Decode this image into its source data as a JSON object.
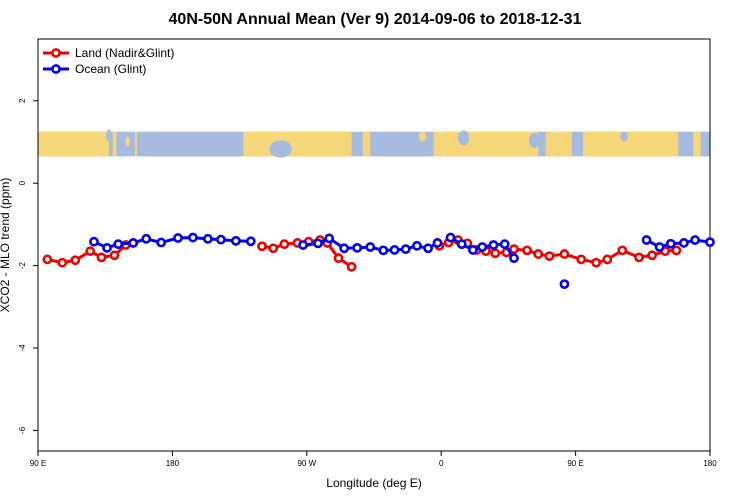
{
  "chart_data": {
    "type": "line",
    "title": "40N-50N Annual Mean (Ver 9)   2014-09-06 to 2018-12-31",
    "xlabel": "Longitude (deg E)",
    "ylabel": "XCO2 - MLO trend (ppm)",
    "xlim": [
      90,
      450
    ],
    "ylim": [
      -6.5,
      3.5
    ],
    "x_ticks": [
      {
        "value": 90,
        "label": "90 E"
      },
      {
        "value": 162,
        "label": "180"
      },
      {
        "value": 234,
        "label": "90 W"
      },
      {
        "value": 306,
        "label": "0"
      },
      {
        "value": 378,
        "label": "90 E"
      },
      {
        "value": 450,
        "label": "180"
      }
    ],
    "y_ticks": [
      {
        "value": -6,
        "label": "-6"
      },
      {
        "value": -4,
        "label": "-4"
      },
      {
        "value": -2,
        "label": "-2"
      },
      {
        "value": 0,
        "label": "0"
      },
      {
        "value": 2,
        "label": "2"
      }
    ],
    "map_strip": {
      "ymin": 0.65,
      "ymax": 1.25,
      "land_color": "#f5d77a",
      "ocean_color": "#a6bbdf"
    },
    "legend": {
      "placement": "top-left"
    },
    "series": [
      {
        "name": "Land (Nadir&Glint)",
        "color": "#ee0000",
        "segments": [
          {
            "x": [
              95,
              103,
              110,
              118,
              124,
              131,
              137
            ],
            "y": [
              -1.85,
              -1.93,
              -1.87,
              -1.65,
              -1.8,
              -1.75,
              -1.5
            ]
          },
          {
            "x": [
              210,
              216,
              222,
              229,
              235,
              241,
              245,
              251,
              258
            ],
            "y": [
              -1.53,
              -1.58,
              -1.48,
              -1.45,
              -1.42,
              -1.38,
              -1.45,
              -1.82,
              -2.03
            ]
          },
          {
            "x": [
              305,
              310,
              315,
              320,
              325,
              330,
              335,
              341,
              345,
              352,
              358,
              364,
              372,
              381,
              389,
              395,
              403,
              412,
              419,
              426,
              432
            ],
            "y": [
              -1.52,
              -1.44,
              -1.38,
              -1.46,
              -1.62,
              -1.65,
              -1.7,
              -1.68,
              -1.6,
              -1.63,
              -1.72,
              -1.77,
              -1.72,
              -1.85,
              -1.93,
              -1.85,
              -1.63,
              -1.8,
              -1.75,
              -1.65,
              -1.63
            ]
          }
        ]
      },
      {
        "name": "Ocean (Glint)",
        "color": "#0000ee",
        "segments": [
          {
            "x": [
              120,
              127,
              133,
              141,
              148,
              156,
              165,
              173,
              181,
              188,
              196,
              204
            ],
            "y": [
              -1.42,
              -1.57,
              -1.48,
              -1.45,
              -1.35,
              -1.44,
              -1.33,
              -1.32,
              -1.35,
              -1.37,
              -1.4,
              -1.41
            ]
          },
          {
            "x": [
              232,
              240,
              246,
              254,
              261,
              268,
              275,
              281,
              287,
              293,
              299,
              304
            ],
            "y": [
              -1.5,
              -1.46,
              -1.34,
              -1.58,
              -1.57,
              -1.55,
              -1.63,
              -1.62,
              -1.6,
              -1.52,
              -1.58,
              -1.45
            ]
          },
          {
            "x": [
              311,
              317,
              323,
              328,
              334,
              340,
              345
            ],
            "y": [
              -1.32,
              -1.48,
              -1.62,
              -1.55,
              -1.5,
              -1.48,
              -1.82
            ]
          },
          {
            "x": [
              372
            ],
            "y": [
              -2.45
            ]
          },
          {
            "x": [
              416,
              423,
              429,
              436,
              442,
              450
            ],
            "y": [
              -1.38,
              -1.55,
              -1.47,
              -1.45,
              -1.38,
              -1.43
            ]
          }
        ]
      }
    ]
  }
}
